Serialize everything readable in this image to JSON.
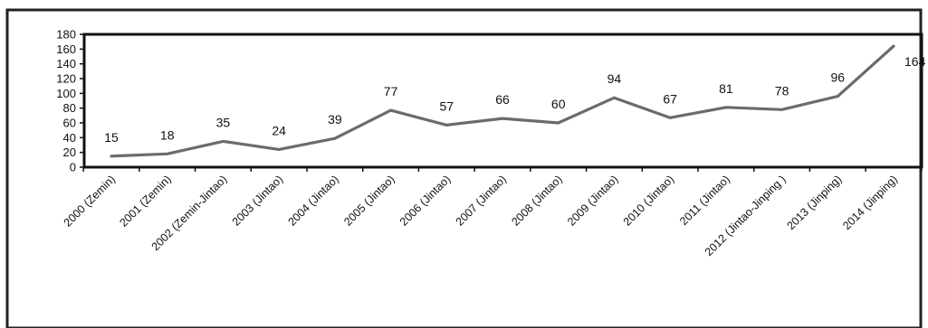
{
  "chart_data": {
    "type": "line",
    "title": "",
    "xlabel": "",
    "ylabel": "",
    "ylim": [
      0,
      180
    ],
    "yticks": [
      0,
      20,
      40,
      60,
      80,
      100,
      120,
      140,
      160,
      180
    ],
    "grid": false,
    "legend": "none",
    "categories": [
      "2000 (Zemin)",
      "2001 (Zemin)",
      "2002 (Zemin-Jintao)",
      "2003 (Jintao)",
      "2004 (Jintao)",
      "2005 (Jintao)",
      "2006 (Jintao)",
      "2007 (Jintao)",
      "2008 (Jintao)",
      "2009 (Jintao)",
      "2010 (Jintao)",
      "2011 (Jintao)",
      "2012 (Jintao-Jinping )",
      "2013 (Jinping)",
      "2014 (Jinping)"
    ],
    "series": [
      {
        "values": [
          15,
          18,
          35,
          24,
          39,
          77,
          57,
          66,
          60,
          94,
          67,
          81,
          78,
          96,
          164
        ],
        "color": "#6b6b6b"
      }
    ]
  }
}
